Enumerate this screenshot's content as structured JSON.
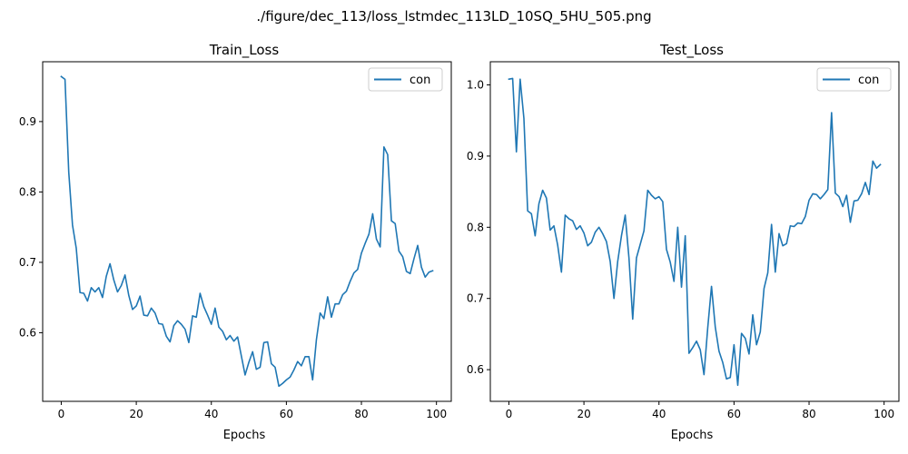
{
  "figure": {
    "suptitle": "./figure/dec_113/loss_lstmdec_113LD_10SQ_5HU_505.png"
  },
  "colors": {
    "series": "#1f77b4",
    "axes": "#000000",
    "background": "#ffffff",
    "legend_border": "#cccccc"
  },
  "chart_data": [
    {
      "type": "line",
      "title": "Train_Loss",
      "xlabel": "Epochs",
      "ylabel": "",
      "xlim": [
        -4.95,
        103.95
      ],
      "ylim": [
        0.5025,
        0.985
      ],
      "xticks": [
        0,
        20,
        40,
        60,
        80,
        100
      ],
      "yticks": [
        0.6,
        0.7,
        0.8,
        0.9
      ],
      "ytick_labels": [
        "0.6",
        "0.7",
        "0.8",
        "0.9"
      ],
      "grid": false,
      "legend": "upper right",
      "series": [
        {
          "name": "con",
          "values": [
            0.964,
            0.96,
            0.828,
            0.753,
            0.72,
            0.657,
            0.656,
            0.645,
            0.664,
            0.658,
            0.664,
            0.65,
            0.68,
            0.698,
            0.675,
            0.658,
            0.667,
            0.682,
            0.653,
            0.633,
            0.638,
            0.652,
            0.625,
            0.624,
            0.635,
            0.628,
            0.613,
            0.612,
            0.595,
            0.587,
            0.61,
            0.617,
            0.612,
            0.605,
            0.586,
            0.624,
            0.622,
            0.656,
            0.637,
            0.625,
            0.612,
            0.635,
            0.608,
            0.602,
            0.59,
            0.596,
            0.588,
            0.594,
            0.567,
            0.54,
            0.558,
            0.573,
            0.548,
            0.551,
            0.586,
            0.587,
            0.556,
            0.551,
            0.524,
            0.528,
            0.533,
            0.537,
            0.547,
            0.559,
            0.553,
            0.566,
            0.566,
            0.533,
            0.59,
            0.628,
            0.62,
            0.651,
            0.622,
            0.641,
            0.641,
            0.654,
            0.659,
            0.673,
            0.685,
            0.69,
            0.713,
            0.727,
            0.74,
            0.769,
            0.733,
            0.722,
            0.864,
            0.853,
            0.759,
            0.755,
            0.716,
            0.708,
            0.687,
            0.684,
            0.705,
            0.724,
            0.693,
            0.679,
            0.686,
            0.688
          ]
        }
      ]
    },
    {
      "type": "line",
      "title": "Test_Loss",
      "xlabel": "Epochs",
      "ylabel": "",
      "xlim": [
        -4.95,
        103.95
      ],
      "ylim": [
        0.5555,
        1.0325
      ],
      "xticks": [
        0,
        20,
        40,
        60,
        80,
        100
      ],
      "yticks": [
        0.6,
        0.7,
        0.8,
        0.9,
        1.0
      ],
      "ytick_labels": [
        "0.6",
        "0.7",
        "0.8",
        "0.9",
        "1.0"
      ],
      "grid": false,
      "legend": "upper right",
      "series": [
        {
          "name": "con",
          "values": [
            1.008,
            1.009,
            0.906,
            1.008,
            0.953,
            0.823,
            0.819,
            0.788,
            0.833,
            0.852,
            0.841,
            0.796,
            0.802,
            0.775,
            0.737,
            0.817,
            0.812,
            0.809,
            0.797,
            0.802,
            0.792,
            0.774,
            0.779,
            0.793,
            0.8,
            0.791,
            0.78,
            0.752,
            0.7,
            0.752,
            0.788,
            0.817,
            0.757,
            0.671,
            0.757,
            0.776,
            0.795,
            0.852,
            0.845,
            0.84,
            0.843,
            0.836,
            0.769,
            0.751,
            0.724,
            0.8,
            0.716,
            0.788,
            0.623,
            0.631,
            0.64,
            0.628,
            0.593,
            0.659,
            0.717,
            0.66,
            0.626,
            0.61,
            0.587,
            0.589,
            0.635,
            0.578,
            0.651,
            0.644,
            0.622,
            0.677,
            0.635,
            0.653,
            0.714,
            0.736,
            0.804,
            0.737,
            0.791,
            0.774,
            0.777,
            0.802,
            0.801,
            0.806,
            0.805,
            0.815,
            0.838,
            0.847,
            0.846,
            0.84,
            0.846,
            0.853,
            0.961,
            0.848,
            0.843,
            0.829,
            0.845,
            0.807,
            0.837,
            0.838,
            0.847,
            0.863,
            0.846,
            0.893,
            0.883,
            0.888
          ]
        }
      ]
    }
  ]
}
